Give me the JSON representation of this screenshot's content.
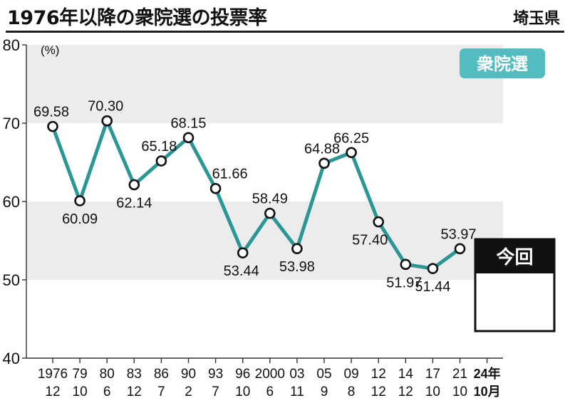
{
  "header": {
    "title": "1976年以降の衆院選の投票率",
    "region": "埼玉県"
  },
  "chart_data": {
    "type": "line",
    "title": "1976年以降の衆院選の投票率",
    "ylabel": "",
    "y_unit": "(%)",
    "ylim": [
      40,
      80
    ],
    "yticks": [
      40,
      50,
      60,
      70,
      80
    ],
    "ytick_labels": [
      "40",
      "50",
      "60",
      "70",
      "80"
    ],
    "shaded_bands": [
      [
        50,
        60
      ],
      [
        70,
        80
      ]
    ],
    "categories": [
      {
        "year": "1976",
        "month": "12"
      },
      {
        "year": "79",
        "month": "10"
      },
      {
        "year": "80",
        "month": "6"
      },
      {
        "year": "83",
        "month": "12"
      },
      {
        "year": "86",
        "month": "7"
      },
      {
        "year": "90",
        "month": "2"
      },
      {
        "year": "93",
        "month": "7"
      },
      {
        "year": "96",
        "month": "10"
      },
      {
        "year": "2000",
        "month": "6"
      },
      {
        "year": "03",
        "month": "11"
      },
      {
        "year": "05",
        "month": "9"
      },
      {
        "year": "09",
        "month": "8"
      },
      {
        "year": "12",
        "month": "12"
      },
      {
        "year": "14",
        "month": "12"
      },
      {
        "year": "17",
        "month": "10"
      },
      {
        "year": "21",
        "month": "10"
      },
      {
        "year": "24年",
        "month": "10月"
      }
    ],
    "series": [
      {
        "name": "衆院選",
        "color": "#2a9696",
        "values": [
          69.58,
          60.09,
          70.3,
          62.14,
          65.18,
          68.15,
          61.66,
          53.44,
          58.49,
          53.98,
          64.88,
          66.25,
          57.4,
          51.97,
          51.44,
          53.97,
          null
        ],
        "labels": [
          "69.58",
          "60.09",
          "70.30",
          "62.14",
          "65.18",
          "68.15",
          "61.66",
          "53.44",
          "58.49",
          "53.98",
          "64.88",
          "66.25",
          "57.40",
          "51.97",
          "51.44",
          "53.97",
          ""
        ]
      }
    ],
    "legend": {
      "label": "衆院選",
      "color": "#52bcc0",
      "position": "top-right"
    },
    "current_box": {
      "label": "今回",
      "value": ""
    },
    "grid": false
  }
}
